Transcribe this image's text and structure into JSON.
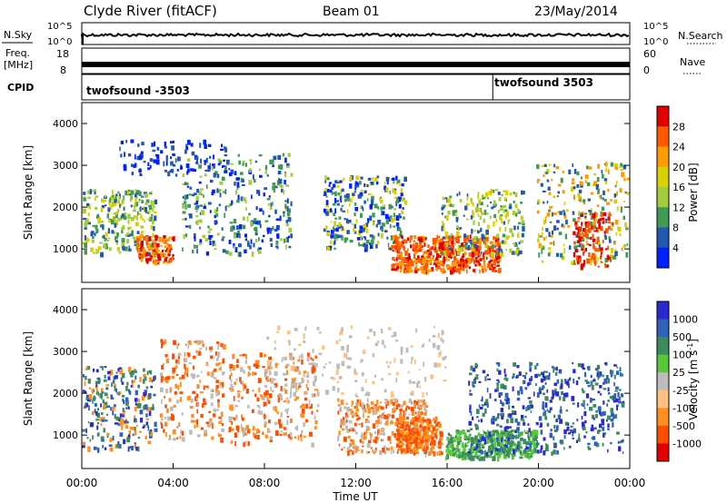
{
  "header": {
    "title": "Clyde River (fitACF)",
    "beam": "Beam 01",
    "date": "23/May/2014"
  },
  "chart_data": [
    {
      "type": "line",
      "panel": "noise",
      "left_label": "N.Sky",
      "left_ticks": [
        "10^5",
        "10^0"
      ],
      "right_ticks": [
        "10^5",
        "10^0"
      ],
      "right_label": "N.Search",
      "right_label_style": "dotted",
      "y_scale": "log",
      "ylim": [
        1,
        100000
      ]
    },
    {
      "type": "line",
      "panel": "frequency",
      "left_label_line1": "Freq.",
      "left_label_line2": "[MHz]",
      "left_ticks": [
        "18",
        "8"
      ],
      "ylim_left": [
        8,
        18
      ],
      "right_ticks": [
        "60",
        "0"
      ],
      "ylim_right": [
        0,
        60
      ],
      "right_label": "Nave",
      "right_label_style": "dotted"
    },
    {
      "type": "annotation",
      "panel": "cpid",
      "label": "CPID",
      "entries": [
        {
          "text": "twofsound -3503",
          "start_hour": 0
        },
        {
          "text": "twofsound 3503",
          "start_hour": 18
        }
      ]
    },
    {
      "type": "heatmap",
      "panel": "power",
      "ylabel": "Slant Range [km]",
      "yticks": [
        1000,
        2000,
        3000,
        4000
      ],
      "ylim": [
        200,
        4500
      ],
      "colorbar": {
        "label": "Power [dB]",
        "ticks": [
          "28",
          "24",
          "20",
          "16",
          "12",
          "8",
          "4"
        ],
        "colors": [
          "#e00000",
          "#ff5a00",
          "#ff9b00",
          "#d8d000",
          "#a2cc3a",
          "#3f9a55",
          "#2458b0",
          "#0020ff"
        ]
      }
    },
    {
      "type": "heatmap",
      "panel": "velocity",
      "ylabel": "Slant Range [km]",
      "yticks": [
        1000,
        2000,
        3000,
        4000
      ],
      "ylim": [
        200,
        4500
      ],
      "colorbar": {
        "label": "Velocity [m s",
        "label_sup": "-1",
        "label_end": "]",
        "ticks": [
          "1000",
          "500",
          "100",
          "25",
          "-25",
          "-100",
          "-500",
          "-1000"
        ],
        "colors": [
          "#2a2ad0",
          "#2f62b8",
          "#3c8c5f",
          "#57c83a",
          "#bdbdbd",
          "#ffc080",
          "#ff9020",
          "#ff4e00",
          "#e00000"
        ]
      }
    },
    {
      "type": "axis",
      "xlabel": "Time UT",
      "xticks": [
        "00:00",
        "04:00",
        "08:00",
        "12:00",
        "16:00",
        "20:00",
        "00:00"
      ],
      "xlim_hours": [
        0,
        24
      ]
    }
  ]
}
